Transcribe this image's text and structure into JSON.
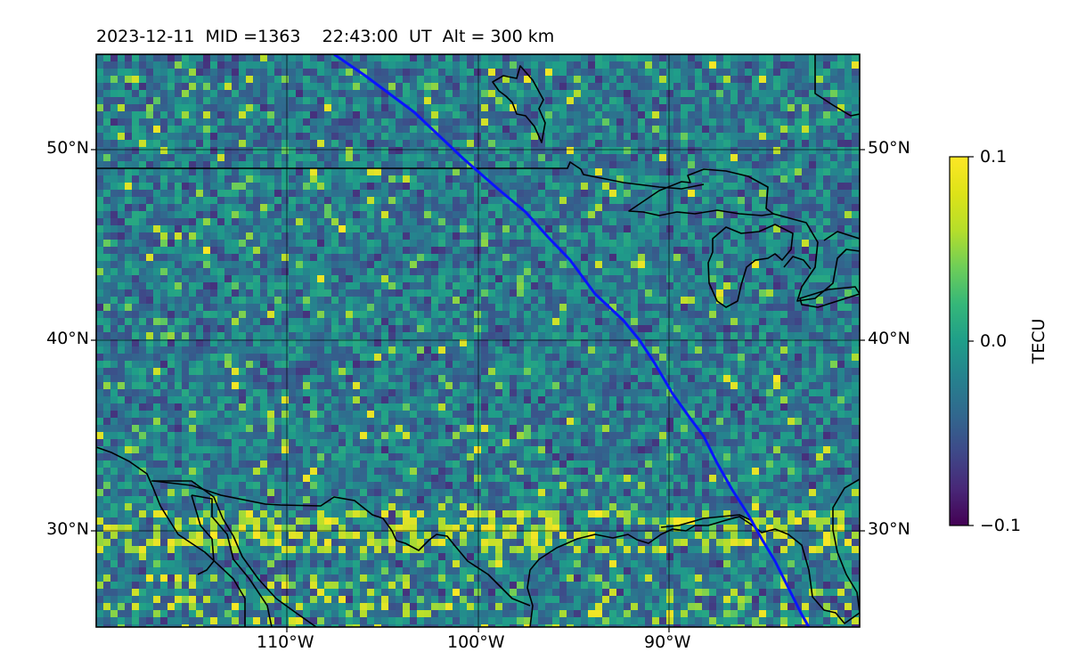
{
  "title": {
    "date": "2023-12-11",
    "mid": "MID =1363",
    "time": "22:43:00  UT",
    "alt": "Alt = 300 km"
  },
  "map": {
    "lon_range": [
      -120,
      -80
    ],
    "lat_range": [
      25,
      55
    ],
    "x_ticks": [
      {
        "lon": -110,
        "label": "110°W"
      },
      {
        "lon": -100,
        "label": "100°W"
      },
      {
        "lon": -90,
        "label": "90°W"
      }
    ],
    "y_ticks": [
      {
        "lat": 50,
        "label": "50°N"
      },
      {
        "lat": 40,
        "label": "40°N"
      },
      {
        "lat": 30,
        "label": "30°N"
      }
    ],
    "track_color": "#0a14ff"
  },
  "colorbar": {
    "label": "TECU",
    "min": -0.1,
    "max": 0.1,
    "ticks": [
      {
        "value": 0.1,
        "label": "0.1"
      },
      {
        "value": 0.0,
        "label": "0.0"
      },
      {
        "value": -0.1,
        "label": "−0.1"
      }
    ],
    "colormap": "viridis"
  }
}
